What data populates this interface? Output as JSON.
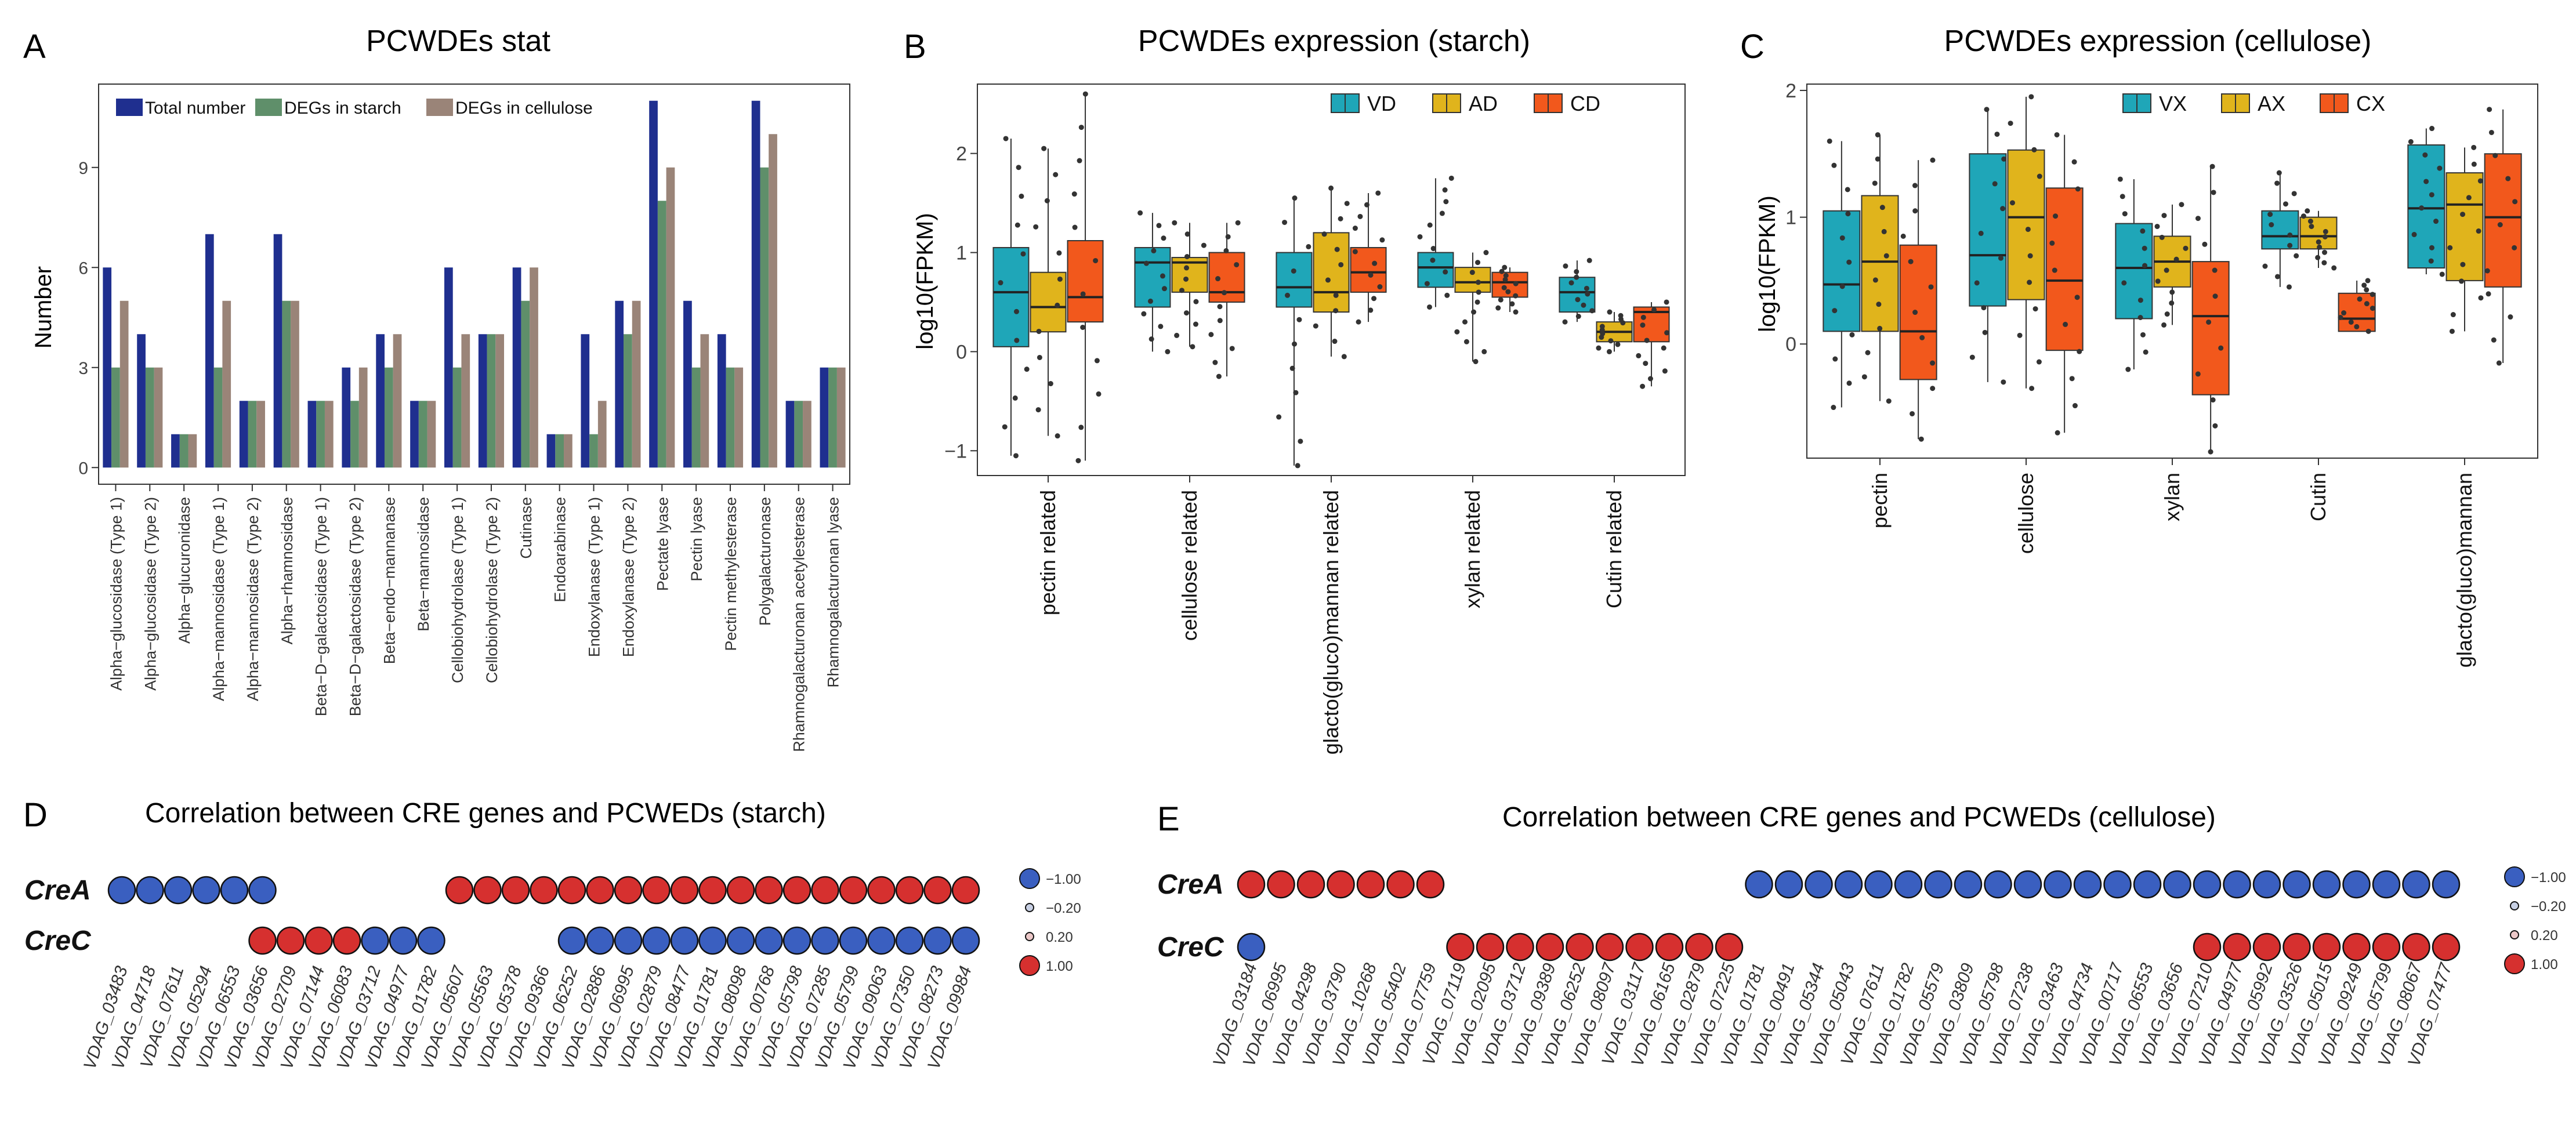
{
  "colors": {
    "total": "#1f2f8f",
    "starch": "#5f8f6a",
    "cellulose": "#9a8478",
    "vd": "#1fa6b8",
    "ad": "#e0b41c",
    "cd": "#f2581c",
    "neg": "#3a5fc0",
    "pos": "#d6302f"
  },
  "panels": {
    "a": {
      "letter": "A"
    },
    "b": {
      "letter": "B"
    },
    "c": {
      "letter": "C"
    },
    "d": {
      "letter": "D"
    },
    "e": {
      "letter": "E"
    }
  },
  "chart_data": [
    {
      "id": "A",
      "type": "bar",
      "title": "PCWDEs stat",
      "xlabel": "",
      "ylabel": "Number",
      "ylim": [
        -0.5,
        11.5
      ],
      "yticks": [
        0,
        3,
        6,
        9
      ],
      "legend_position": "top-left",
      "categories": [
        "Alpha−glucosidase (Type 1)",
        "Alpha−glucosidase (Type 2)",
        "Alpha−glucuronidase",
        "Alpha−mannosidase (Type 1)",
        "Alpha−mannosidase (Type 2)",
        "Alpha−rhamnosidase",
        "Beta−D−galactosidase (Type 1)",
        "Beta−D−galactosidase (Type 2)",
        "Beta−endo−mannanase",
        "Beta−mannosidase",
        "Cellobiohydrolase (Type 1)",
        "Cellobiohydrolase (Type 2)",
        "Cutinase",
        "Endoarabinase",
        "Endoxylanase (Type 1)",
        "Endoxylanase (Type 2)",
        "Pectate lyase",
        "Pectin lyase",
        "Pectin methylesterase",
        "Polygalacturonase",
        "Rhamnogalacturonan acetylesterase",
        "Rhamnogalacturonan lyase"
      ],
      "series": [
        {
          "name": "Total number",
          "color": "#1f2f8f",
          "values": [
            6,
            4,
            1,
            7,
            2,
            7,
            2,
            3,
            4,
            2,
            6,
            4,
            6,
            1,
            4,
            5,
            11,
            5,
            4,
            11,
            2,
            3
          ]
        },
        {
          "name": "DEGs in starch",
          "color": "#5f8f6a",
          "values": [
            3,
            3,
            1,
            3,
            2,
            5,
            2,
            2,
            3,
            2,
            3,
            4,
            5,
            1,
            1,
            4,
            8,
            3,
            3,
            9,
            2,
            3
          ]
        },
        {
          "name": "DEGs in cellulose",
          "color": "#9a8478",
          "values": [
            5,
            3,
            1,
            5,
            2,
            5,
            2,
            3,
            4,
            2,
            4,
            4,
            6,
            1,
            2,
            5,
            9,
            4,
            3,
            10,
            2,
            3
          ]
        }
      ]
    },
    {
      "id": "B",
      "type": "box",
      "title": "PCWDEs expression (starch)",
      "xlabel": "",
      "ylabel": "log10(FPKM)",
      "ylim": [
        -1.25,
        2.7
      ],
      "yticks": [
        -1,
        0,
        1,
        2
      ],
      "ytick_labels": [
        "−1",
        "0",
        "1",
        "2"
      ],
      "legend_position": "top-right",
      "groups": [
        "VD",
        "AD",
        "CD"
      ],
      "group_colors": [
        "#1fa6b8",
        "#e0b41c",
        "#f2581c"
      ],
      "categories": [
        "pectin related",
        "cellulose related",
        "glacto(gluco)mannan related",
        "xylan related",
        "Cutin related"
      ],
      "boxes": [
        [
          [
            -1.05,
            0.05,
            0.6,
            1.05,
            2.15
          ],
          [
            -0.85,
            0.2,
            0.45,
            0.8,
            2.05
          ],
          [
            -1.1,
            0.3,
            0.55,
            1.12,
            2.6
          ]
        ],
        [
          [
            0.0,
            0.45,
            0.9,
            1.05,
            1.4
          ],
          [
            0.05,
            0.6,
            0.9,
            0.95,
            1.3
          ],
          [
            -0.25,
            0.5,
            0.6,
            1.0,
            1.3
          ]
        ],
        [
          [
            -1.15,
            0.45,
            0.65,
            1.0,
            1.55
          ],
          [
            -0.05,
            0.4,
            0.6,
            1.2,
            1.65
          ],
          [
            0.3,
            0.6,
            0.8,
            1.05,
            1.6
          ]
        ],
        [
          [
            0.45,
            0.65,
            0.85,
            1.0,
            1.75
          ],
          [
            -0.1,
            0.6,
            0.7,
            0.85,
            1.0
          ],
          [
            0.4,
            0.55,
            0.7,
            0.8,
            0.85
          ]
        ],
        [
          [
            0.3,
            0.4,
            0.6,
            0.75,
            0.92
          ],
          [
            0.0,
            0.1,
            0.2,
            0.3,
            0.4
          ],
          [
            -0.35,
            0.1,
            0.4,
            0.45,
            0.5
          ]
        ]
      ]
    },
    {
      "id": "C",
      "type": "box",
      "title": "PCWDEs expression (cellulose)",
      "xlabel": "",
      "ylabel": "log10(FPKM)",
      "ylim": [
        -0.9,
        2.05
      ],
      "yticks": [
        0,
        1,
        2
      ],
      "ytick_labels": [
        "0",
        "1",
        "2"
      ],
      "legend_position": "top-right",
      "groups": [
        "VX",
        "AX",
        "CX"
      ],
      "group_colors": [
        "#1fa6b8",
        "#e0b41c",
        "#f2581c"
      ],
      "categories": [
        "pectin",
        "cellulose",
        "xylan",
        "Cutin",
        "glacto(gluco)mannan"
      ],
      "boxes": [
        [
          [
            -0.5,
            0.1,
            0.47,
            1.05,
            1.6
          ],
          [
            -0.45,
            0.1,
            0.65,
            1.17,
            1.65
          ],
          [
            -0.75,
            -0.28,
            0.1,
            0.78,
            1.45
          ]
        ],
        [
          [
            -0.3,
            0.3,
            0.7,
            1.5,
            1.85
          ],
          [
            -0.35,
            0.35,
            1.0,
            1.53,
            1.95
          ],
          [
            -0.7,
            -0.05,
            0.5,
            1.23,
            1.65
          ]
        ],
        [
          [
            -0.2,
            0.2,
            0.6,
            0.95,
            1.3
          ],
          [
            0.15,
            0.45,
            0.65,
            0.85,
            1.1
          ],
          [
            -0.85,
            -0.4,
            0.22,
            0.65,
            1.4
          ]
        ],
        [
          [
            0.45,
            0.75,
            0.85,
            1.05,
            1.35
          ],
          [
            0.6,
            0.75,
            0.85,
            1.0,
            1.05
          ],
          [
            0.1,
            0.1,
            0.2,
            0.4,
            0.5
          ]
        ],
        [
          [
            0.55,
            0.6,
            1.07,
            1.57,
            1.7
          ],
          [
            0.1,
            0.5,
            1.1,
            1.35,
            1.55
          ],
          [
            -0.15,
            0.45,
            1.0,
            1.5,
            1.85
          ]
        ]
      ]
    },
    {
      "id": "D",
      "type": "dot-matrix",
      "title": "Correlation between CRE genes and PCWEDs (starch)",
      "rows": [
        "CreA",
        "CreC"
      ],
      "columns": [
        "VDAG_03483",
        "VDAG_04718",
        "VDAG_07611",
        "VDAG_05294",
        "VDAG_06553",
        "VDAG_03656",
        "VDAG_02709",
        "VDAG_07144",
        "VDAG_06083",
        "VDAG_03712",
        "VDAG_04977",
        "VDAG_01782",
        "VDAG_05607",
        "VDAG_05563",
        "VDAG_05378",
        "VDAG_09366",
        "VDAG_06252",
        "VDAG_02886",
        "VDAG_06995",
        "VDAG_02879",
        "VDAG_08477",
        "VDAG_01781",
        "VDAG_08098",
        "VDAG_00768",
        "VDAG_05798",
        "VDAG_07285",
        "VDAG_05799",
        "VDAG_09063",
        "VDAG_07350",
        "VDAG_08273",
        "VDAG_09984"
      ],
      "values": [
        [
          -1,
          -1,
          -1,
          -1,
          -1,
          -1,
          null,
          null,
          null,
          null,
          null,
          null,
          1,
          1,
          1,
          1,
          1,
          1,
          1,
          1,
          1,
          1,
          1,
          1,
          1,
          1,
          1,
          1,
          1,
          1,
          1
        ],
        [
          null,
          null,
          null,
          null,
          null,
          1,
          1,
          1,
          1,
          -1,
          -1,
          -1,
          null,
          null,
          null,
          null,
          -1,
          -1,
          -1,
          -1,
          -1,
          -1,
          -1,
          -1,
          -1,
          -1,
          -1,
          -1,
          -1,
          -1,
          -1
        ]
      ],
      "legend": [
        {
          "value": -1.0,
          "label": "−1.00"
        },
        {
          "value": -0.2,
          "label": "−0.20"
        },
        {
          "value": 0.2,
          "label": "0.20"
        },
        {
          "value": 1.0,
          "label": "1.00"
        }
      ]
    },
    {
      "id": "E",
      "type": "dot-matrix",
      "title": "Correlation between CRE genes and PCWEDs (cellulose)",
      "rows": [
        "CreA",
        "CreC"
      ],
      "columns": [
        "VDAG_03184",
        "VDAG_06995",
        "VDAG_04298",
        "VDAG_03790",
        "VDAG_10268",
        "VDAG_05402",
        "VDAG_07759",
        "VDAG_07119",
        "VDAG_02095",
        "VDAG_03712",
        "VDAG_09389",
        "VDAG_06252",
        "VDAG_08097",
        "VDAG_03117",
        "VDAG_06165",
        "VDAG_02879",
        "VDAG_07225",
        "VDAG_01781",
        "VDAG_00491",
        "VDAG_05344",
        "VDAG_05043",
        "VDAG_07611",
        "VDAG_01782",
        "VDAG_05579",
        "VDAG_03809",
        "VDAG_05798",
        "VDAG_07238",
        "VDAG_03463",
        "VDAG_04734",
        "VDAG_00717",
        "VDAG_06553",
        "VDAG_03656",
        "VDAG_07210",
        "VDAG_04977",
        "VDAG_05992",
        "VDAG_03526",
        "VDAG_05015",
        "VDAG_09249",
        "VDAG_05799",
        "VDAG_08067",
        "VDAG_07477"
      ],
      "values": [
        [
          1,
          1,
          1,
          1,
          1,
          1,
          1,
          null,
          null,
          null,
          null,
          null,
          null,
          null,
          null,
          null,
          null,
          -1,
          -1,
          -1,
          -1,
          -1,
          -1,
          -1,
          -1,
          -1,
          -1,
          -1,
          -1,
          -1,
          -1,
          -1,
          -1,
          -1,
          -1,
          -1,
          -1,
          -1,
          -1,
          -1,
          -1
        ],
        [
          -1,
          null,
          null,
          null,
          null,
          null,
          null,
          1,
          1,
          1,
          1,
          1,
          1,
          1,
          1,
          1,
          1,
          null,
          null,
          null,
          null,
          null,
          null,
          null,
          null,
          null,
          null,
          null,
          null,
          null,
          null,
          null,
          1,
          1,
          1,
          1,
          1,
          1,
          1,
          1,
          1
        ]
      ],
      "legend": [
        {
          "value": -1.0,
          "label": "−1.00"
        },
        {
          "value": -0.2,
          "label": "−0.20"
        },
        {
          "value": 0.2,
          "label": "0.20"
        },
        {
          "value": 1.0,
          "label": "1.00"
        }
      ]
    }
  ]
}
